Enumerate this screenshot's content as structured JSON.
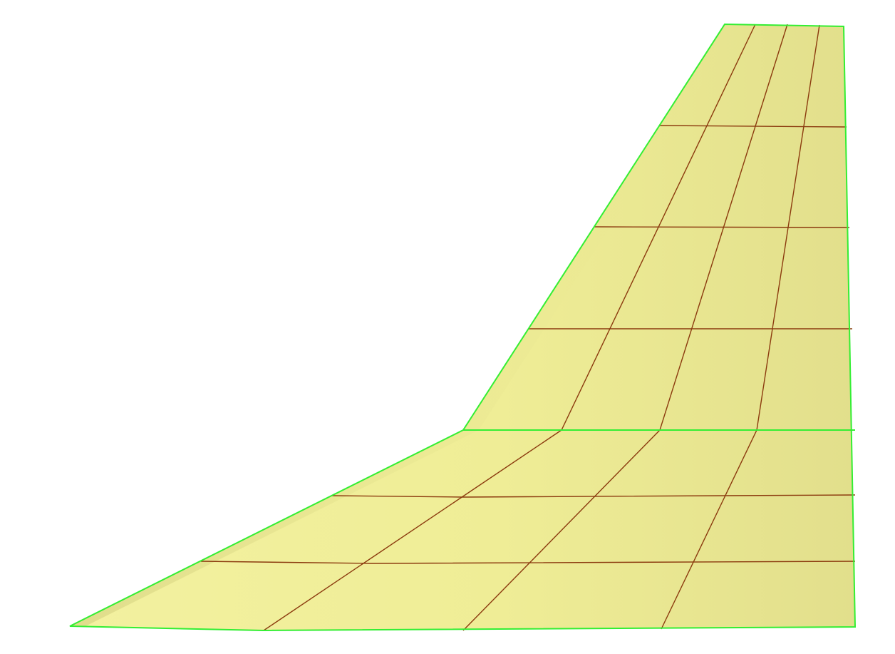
{
  "viewport": {
    "background": "#ffffff",
    "object": "wing-surface-mesh",
    "colors": {
      "surface_base": "#efed96",
      "surface_light": "#f3f1a0",
      "surface_dark": "#e2df8c",
      "leading_edge_shade": "#d3cf7e",
      "outline": "#33ee33",
      "mesh_line": "#8b3a0e"
    },
    "mesh": {
      "inner_panel": {
        "spanwise_divisions": 3,
        "chordwise_divisions": 4
      },
      "outer_panel": {
        "spanwise_divisions": 4,
        "chordwise_divisions": 4
      }
    }
  }
}
